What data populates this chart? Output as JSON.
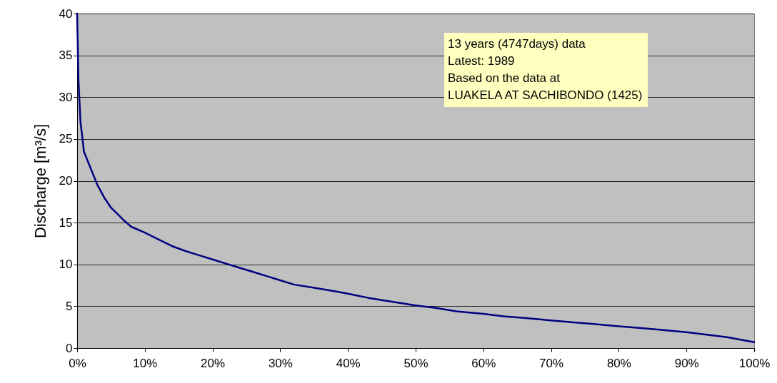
{
  "chart_data": {
    "type": "line",
    "ylabel": "Discharge [m³/s]",
    "annotations": [
      "13 years (4747days) data",
      "Latest: 1989",
      "Based on the data at",
      "LUAKELA AT SACHIBONDO (1425)"
    ],
    "x": [
      0,
      0.1,
      0.2,
      0.5,
      0.8,
      1,
      1.5,
      2,
      3,
      4,
      5,
      6,
      7,
      8,
      10,
      12,
      14,
      16,
      18,
      20,
      22,
      24,
      26,
      28,
      30,
      32,
      35,
      38,
      40,
      43,
      46,
      50,
      53,
      56,
      60,
      63,
      66,
      70,
      73,
      76,
      80,
      83,
      86,
      90,
      93,
      96,
      98,
      100
    ],
    "series": [
      {
        "color": "#000080",
        "values": [
          40,
          36,
          32,
          27,
          25,
          23.5,
          22.5,
          21.5,
          19.5,
          18,
          16.8,
          16,
          15.2,
          14.5,
          13.8,
          13,
          12.2,
          11.6,
          11.1,
          10.6,
          10.1,
          9.6,
          9.1,
          8.6,
          8.1,
          7.6,
          7.2,
          6.8,
          6.5,
          6,
          5.6,
          5.1,
          4.8,
          4.4,
          4.1,
          3.8,
          3.6,
          3.3,
          3.1,
          2.9,
          2.6,
          2.4,
          2.2,
          1.9,
          1.6,
          1.3,
          1,
          0.7
        ]
      }
    ],
    "xlim": [
      0,
      100
    ],
    "xticks": [
      {
        "value": 0,
        "label": "0%"
      },
      {
        "value": 10,
        "label": "10%"
      },
      {
        "value": 20,
        "label": "20%"
      },
      {
        "value": 30,
        "label": "30%"
      },
      {
        "value": 40,
        "label": "40%"
      },
      {
        "value": 50,
        "label": "50%"
      },
      {
        "value": 60,
        "label": "60%"
      },
      {
        "value": 70,
        "label": "70%"
      },
      {
        "value": 80,
        "label": "80%"
      },
      {
        "value": 90,
        "label": "90%"
      },
      {
        "value": 100,
        "label": "100%"
      }
    ],
    "ylim": [
      0,
      40
    ],
    "yticks": [
      0,
      5,
      10,
      15,
      20,
      25,
      30,
      35,
      40
    ],
    "grid": "y",
    "marker": "none",
    "line_style": "solid"
  }
}
